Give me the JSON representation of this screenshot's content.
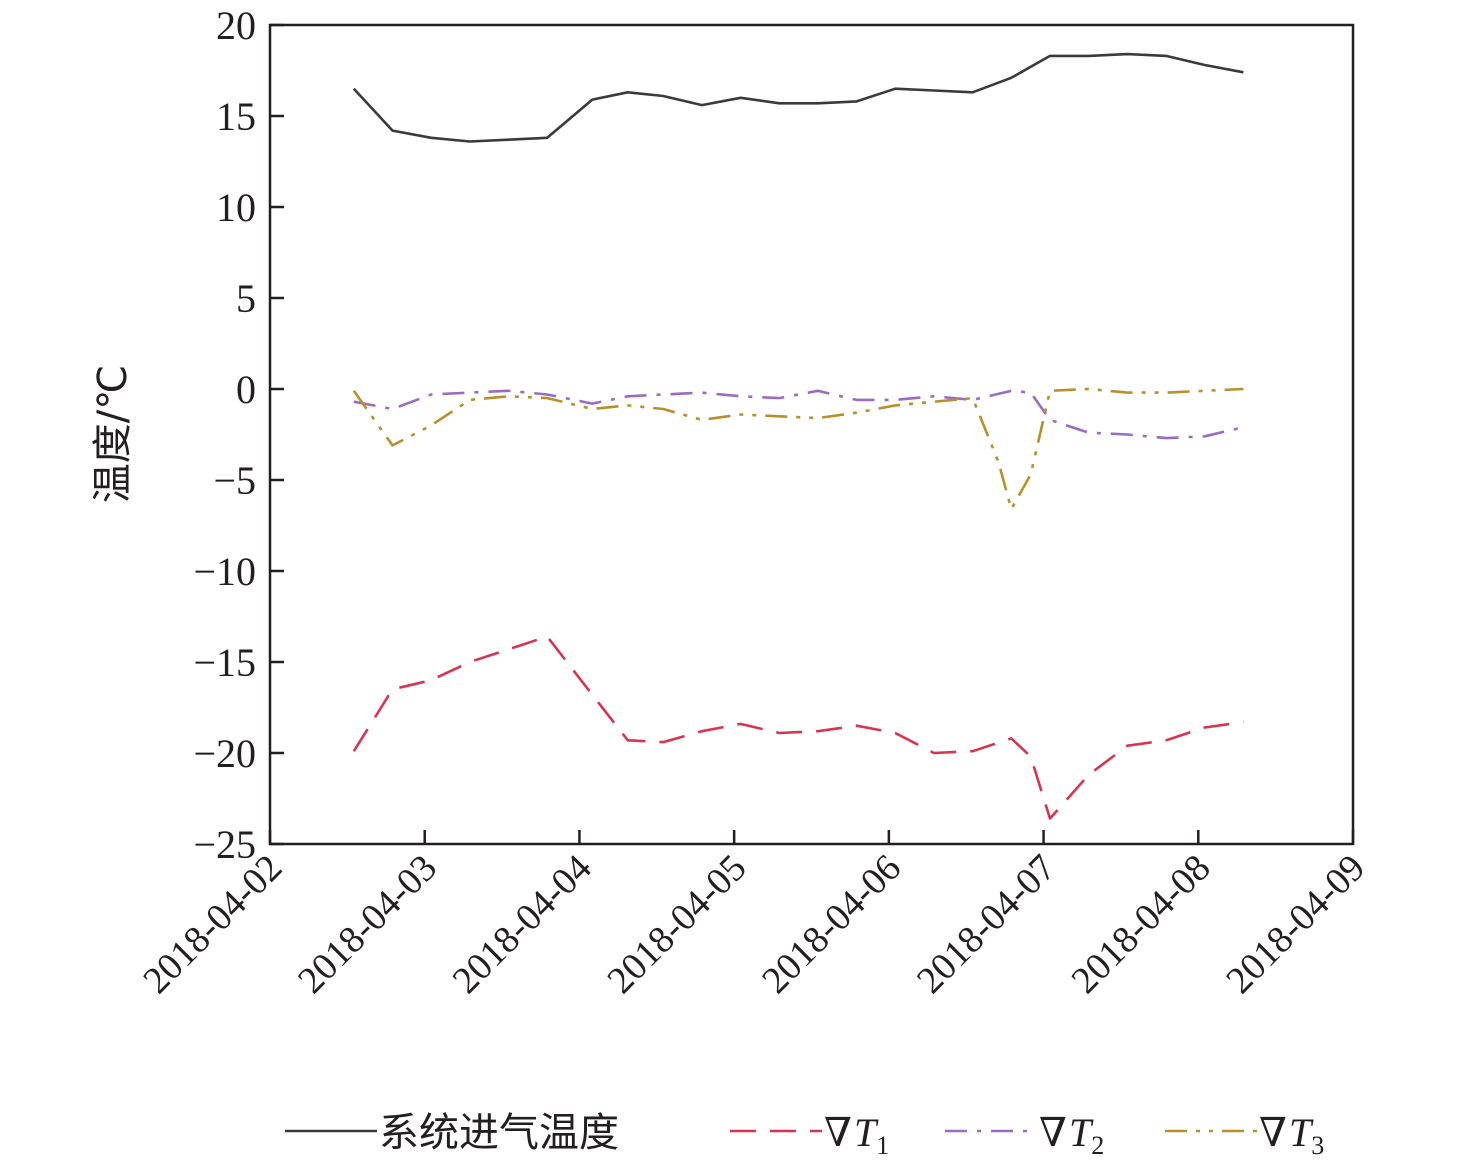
{
  "chart_data": {
    "type": "line",
    "ylabel": "温度/℃",
    "xlabel": "",
    "ylim": [
      -25,
      20
    ],
    "y_ticks": [
      20,
      15,
      10,
      5,
      0,
      -5,
      -10,
      -15,
      -20,
      -25
    ],
    "y_tick_labels": [
      "20",
      "15",
      "10",
      "5",
      "0",
      "−5",
      "−10",
      "−15",
      "−20",
      "−25"
    ],
    "xlim": [
      "2018-04-02",
      "2018-04-09"
    ],
    "x_ticks": [
      "2018-04-02",
      "2018-04-03",
      "2018-04-04",
      "2018-04-05",
      "2018-04-06",
      "2018-04-07",
      "2018-04-08",
      "2018-04-09"
    ],
    "x_tick_labels": [
      "2018-04-02",
      "2018-04-03",
      "2018-04-04",
      "2018-04-05",
      "2018-04-06",
      "2018-04-07",
      "2018-04-08",
      "2018-04-09"
    ],
    "grid": false,
    "legend_position": "bottom",
    "series": [
      {
        "name": "系统进气温度",
        "color": "#3a3a3c",
        "dash": "solid",
        "points": [
          [
            "2018-04-02 13:00",
            16.5
          ],
          [
            "2018-04-02 19:00",
            14.2
          ],
          [
            "2018-04-03 01:00",
            13.8
          ],
          [
            "2018-04-03 07:00",
            13.6
          ],
          [
            "2018-04-03 13:00",
            13.7
          ],
          [
            "2018-04-03 19:00",
            13.8
          ],
          [
            "2018-04-04 02:00",
            15.9
          ],
          [
            "2018-04-04 07:30",
            16.3
          ],
          [
            "2018-04-04 13:00",
            16.1
          ],
          [
            "2018-04-04 19:00",
            15.6
          ],
          [
            "2018-04-05 01:00",
            16.0
          ],
          [
            "2018-04-05 07:00",
            15.7
          ],
          [
            "2018-04-05 13:00",
            15.7
          ],
          [
            "2018-04-05 19:00",
            15.8
          ],
          [
            "2018-04-06 01:00",
            16.5
          ],
          [
            "2018-04-06 07:00",
            16.4
          ],
          [
            "2018-04-06 13:00",
            16.3
          ],
          [
            "2018-04-06 19:00",
            17.1
          ],
          [
            "2018-04-07 01:00",
            18.3
          ],
          [
            "2018-04-07 07:00",
            18.3
          ],
          [
            "2018-04-07 13:00",
            18.4
          ],
          [
            "2018-04-07 19:00",
            18.3
          ],
          [
            "2018-04-08 01:00",
            17.8
          ],
          [
            "2018-04-08 07:00",
            17.4
          ]
        ]
      },
      {
        "name": "∇T1",
        "color": "#d9344e",
        "dash": "dashed",
        "points": [
          [
            "2018-04-02 13:00",
            -19.9
          ],
          [
            "2018-04-02 19:00",
            -16.5
          ],
          [
            "2018-04-03 01:00",
            -16.0
          ],
          [
            "2018-04-03 07:00",
            -15.0
          ],
          [
            "2018-04-03 13:00",
            -14.3
          ],
          [
            "2018-04-03 19:00",
            -13.6
          ],
          [
            "2018-04-04 02:00",
            -16.8
          ],
          [
            "2018-04-04 07:30",
            -19.3
          ],
          [
            "2018-04-04 13:00",
            -19.4
          ],
          [
            "2018-04-04 19:00",
            -18.8
          ],
          [
            "2018-04-05 01:00",
            -18.4
          ],
          [
            "2018-04-05 07:00",
            -18.9
          ],
          [
            "2018-04-05 13:00",
            -18.8
          ],
          [
            "2018-04-05 19:00",
            -18.5
          ],
          [
            "2018-04-06 01:00",
            -18.9
          ],
          [
            "2018-04-06 07:00",
            -20.0
          ],
          [
            "2018-04-06 13:00",
            -19.9
          ],
          [
            "2018-04-06 19:00",
            -19.2
          ],
          [
            "2018-04-06 22:00",
            -20.2
          ],
          [
            "2018-04-07 01:00",
            -23.6
          ],
          [
            "2018-04-07 07:00",
            -21.2
          ],
          [
            "2018-04-07 13:00",
            -19.6
          ],
          [
            "2018-04-07 19:00",
            -19.3
          ],
          [
            "2018-04-08 01:00",
            -18.6
          ],
          [
            "2018-04-08 07:00",
            -18.3
          ]
        ]
      },
      {
        "name": "∇T2",
        "color": "#9a6cc0",
        "dash": "dashdot",
        "points": [
          [
            "2018-04-02 13:00",
            -0.7
          ],
          [
            "2018-04-02 19:00",
            -1.1
          ],
          [
            "2018-04-03 01:00",
            -0.3
          ],
          [
            "2018-04-03 07:00",
            -0.2
          ],
          [
            "2018-04-03 13:00",
            -0.1
          ],
          [
            "2018-04-03 19:00",
            -0.3
          ],
          [
            "2018-04-04 02:00",
            -0.8
          ],
          [
            "2018-04-04 07:30",
            -0.4
          ],
          [
            "2018-04-04 13:00",
            -0.3
          ],
          [
            "2018-04-04 19:00",
            -0.2
          ],
          [
            "2018-04-05 01:00",
            -0.4
          ],
          [
            "2018-04-05 07:00",
            -0.5
          ],
          [
            "2018-04-05 13:00",
            -0.1
          ],
          [
            "2018-04-05 19:00",
            -0.6
          ],
          [
            "2018-04-06 01:00",
            -0.6
          ],
          [
            "2018-04-06 07:00",
            -0.4
          ],
          [
            "2018-04-06 13:00",
            -0.6
          ],
          [
            "2018-04-06 19:00",
            -0.1
          ],
          [
            "2018-04-06 22:00",
            -0.2
          ],
          [
            "2018-04-07 01:00",
            -1.7
          ],
          [
            "2018-04-07 07:00",
            -2.4
          ],
          [
            "2018-04-07 13:00",
            -2.5
          ],
          [
            "2018-04-07 19:00",
            -2.7
          ],
          [
            "2018-04-08 01:00",
            -2.6
          ],
          [
            "2018-04-08 07:00",
            -2.1
          ]
        ]
      },
      {
        "name": "∇T3",
        "color": "#b8902a",
        "dash": "dashdotdot",
        "points": [
          [
            "2018-04-02 13:00",
            -0.1
          ],
          [
            "2018-04-02 19:00",
            -3.1
          ],
          [
            "2018-04-03 01:00",
            -2.0
          ],
          [
            "2018-04-03 07:00",
            -0.6
          ],
          [
            "2018-04-03 13:00",
            -0.4
          ],
          [
            "2018-04-03 19:00",
            -0.5
          ],
          [
            "2018-04-04 02:00",
            -1.1
          ],
          [
            "2018-04-04 07:30",
            -0.9
          ],
          [
            "2018-04-04 13:00",
            -1.1
          ],
          [
            "2018-04-04 19:00",
            -1.7
          ],
          [
            "2018-04-05 01:00",
            -1.4
          ],
          [
            "2018-04-05 07:00",
            -1.5
          ],
          [
            "2018-04-05 13:00",
            -1.6
          ],
          [
            "2018-04-05 19:00",
            -1.3
          ],
          [
            "2018-04-06 01:00",
            -0.9
          ],
          [
            "2018-04-06 07:00",
            -0.7
          ],
          [
            "2018-04-06 13:00",
            -0.5
          ],
          [
            "2018-04-06 17:00",
            -4.0
          ],
          [
            "2018-04-06 19:00",
            -6.6
          ],
          [
            "2018-04-06 22:00",
            -4.7
          ],
          [
            "2018-04-07 01:00",
            -0.1
          ],
          [
            "2018-04-07 07:00",
            -0.0
          ],
          [
            "2018-04-07 13:00",
            -0.2
          ],
          [
            "2018-04-07 19:00",
            -0.2
          ],
          [
            "2018-04-08 01:00",
            -0.1
          ],
          [
            "2018-04-08 07:00",
            0.0
          ]
        ]
      }
    ],
    "legend": [
      {
        "label": "系统进气温度",
        "symbol": "",
        "var": "",
        "sub": ""
      },
      {
        "label": "",
        "symbol": "∇",
        "var": "T",
        "sub": "1"
      },
      {
        "label": "",
        "symbol": "∇",
        "var": "T",
        "sub": "2"
      },
      {
        "label": "",
        "symbol": "∇",
        "var": "T",
        "sub": "3"
      }
    ]
  }
}
